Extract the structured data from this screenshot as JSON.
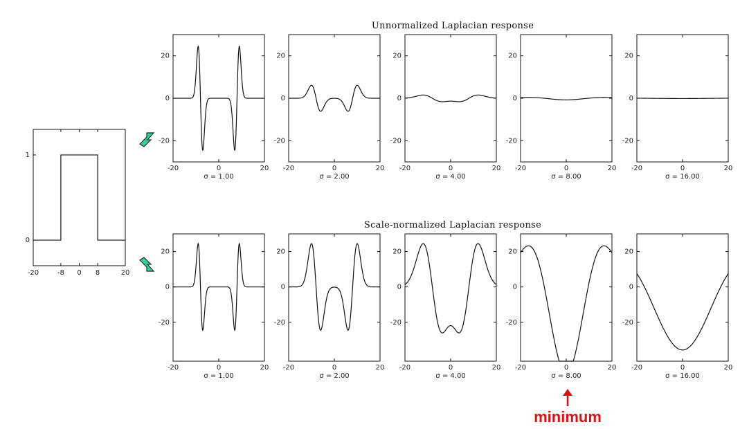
{
  "chart_data": {
    "type": "line",
    "colors": {
      "curve": "#111111",
      "arrow_fill": "#2fcf9e",
      "arrow_edge": "#1a2a24",
      "minimum": "#e01010"
    },
    "input": {
      "x_ticks": [
        "-20",
        "-8",
        "0",
        "8",
        "20"
      ],
      "y_ticks": [
        "0",
        "1"
      ],
      "xlim": [
        -20,
        20
      ],
      "ylim": [
        -0.3,
        1.3
      ],
      "edges": [
        -8,
        8
      ],
      "height": 1
    },
    "rows": [
      {
        "key": "unnormalized",
        "title": "Unnormalized Laplacian response",
        "y_ticks": [
          "20",
          "0",
          "-20"
        ],
        "x_ticks": [
          "-20",
          "0",
          "20"
        ],
        "panels": [
          {
            "sigma": 1,
            "label": "σ = 1.00"
          },
          {
            "sigma": 2,
            "label": "σ = 2.00"
          },
          {
            "sigma": 4,
            "label": "σ = 4.00"
          },
          {
            "sigma": 8,
            "label": "σ = 8.00"
          },
          {
            "sigma": 16,
            "label": "σ = 16.00"
          }
        ]
      },
      {
        "key": "normalized",
        "title": "Scale-normalized Laplacian response",
        "y_ticks": [
          "20",
          "0",
          "-20"
        ],
        "x_ticks": [
          "-20",
          "0",
          "20"
        ],
        "panels": [
          {
            "sigma": 1,
            "label": "σ = 1.00"
          },
          {
            "sigma": 2,
            "label": "σ = 2.00"
          },
          {
            "sigma": 4,
            "label": "σ = 4.00"
          },
          {
            "sigma": 8,
            "label": "σ = 8.00"
          },
          {
            "sigma": 16,
            "label": "σ = 16.00"
          }
        ]
      }
    ],
    "xlim": [
      -20,
      20
    ],
    "ylim_unnormalized": [
      -30,
      30
    ],
    "ylim_normalized": [
      -42,
      30
    ],
    "annotation": {
      "text": "minimum",
      "panel": "σ = 8.00",
      "row": "normalized"
    }
  }
}
